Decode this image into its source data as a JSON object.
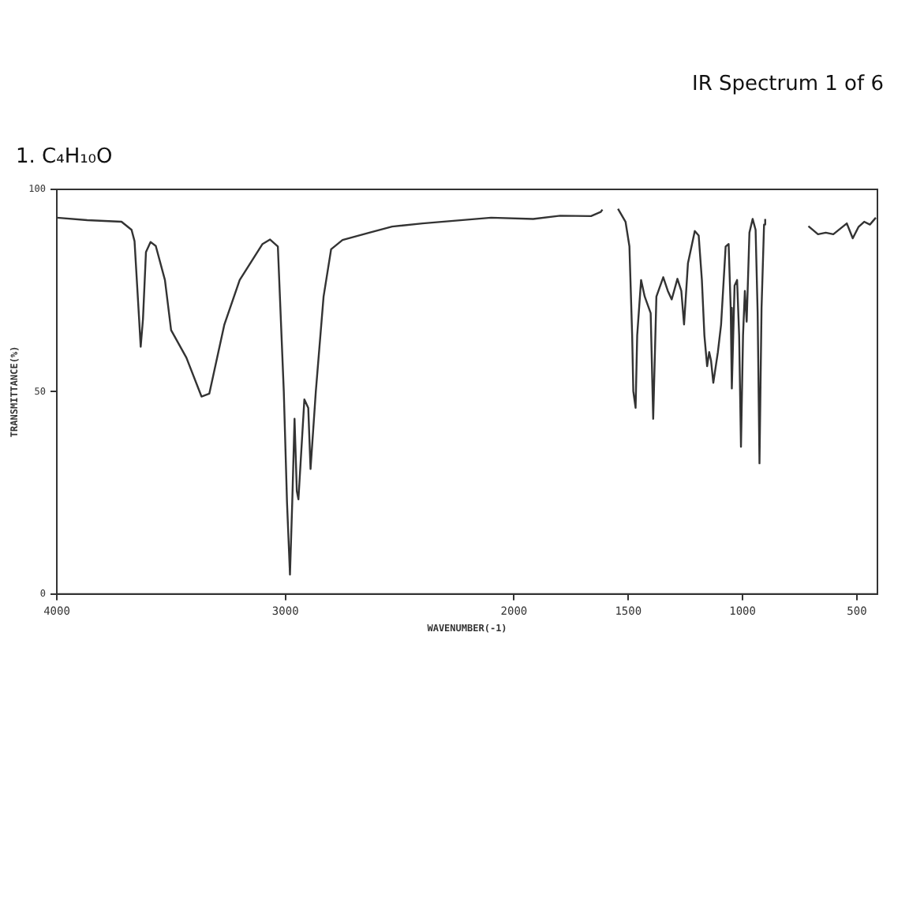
{
  "chart_data": {
    "type": "line",
    "title": "IR Spectrum 1 of 6",
    "subtitle": "1. C₄H₁₀O",
    "xlabel": "WAVENUMBER(-1)",
    "ylabel": "TRANSMITTANCE(%)",
    "x": [
      4000,
      3867,
      3717,
      3673,
      3660,
      3640,
      3633,
      3623,
      3610,
      3590,
      3567,
      3527,
      3500,
      3433,
      3367,
      3333,
      3267,
      3200,
      3100,
      3067,
      3033,
      3007,
      2993,
      2980,
      2970,
      2960,
      2950,
      2943,
      2917,
      2900,
      2890,
      2867,
      2833,
      2800,
      2750,
      2633,
      2533,
      2400,
      2100,
      1916,
      1798,
      1663,
      1621,
      1613,
      1580,
      1545,
      1512,
      1495,
      1483,
      1478,
      1468,
      1461,
      1444,
      1428,
      1402,
      1391,
      1377,
      1347,
      1327,
      1310,
      1285,
      1268,
      1256,
      1239,
      1209,
      1192,
      1178,
      1167,
      1155,
      1146,
      1138,
      1128,
      1108,
      1094,
      1074,
      1061,
      1052,
      1047,
      1035,
      1024,
      1015,
      1007,
      998,
      990,
      982,
      970,
      956,
      943,
      934,
      926,
      917,
      906,
      901,
      800,
      712,
      670,
      636,
      603,
      544,
      518,
      493,
      468,
      443,
      417
    ],
    "series": [
      {
        "color": "#333333",
        "values": [
          93,
          92.4,
          92,
          90,
          87.2,
          68,
          61.1,
          68,
          84.5,
          87,
          86,
          77.6,
          65.2,
          58.4,
          48.8,
          49.5,
          66.6,
          77.6,
          86.5,
          87.6,
          85.9,
          50,
          22.7,
          4.8,
          22.7,
          43.3,
          25.4,
          23.4,
          48.1,
          46,
          30.9,
          50,
          73.5,
          85.2,
          87.5,
          89.3,
          90.8,
          91.6,
          93,
          92.7,
          93.5,
          93.4,
          94.4,
          95,
          null,
          95.2,
          92,
          85.9,
          63.9,
          50.1,
          46,
          63.9,
          77.6,
          73.5,
          69.4,
          43.3,
          73.5,
          78.3,
          74.9,
          72.8,
          77.9,
          74.9,
          66.6,
          81.7,
          89.7,
          88.6,
          77.6,
          63.9,
          56.3,
          59.8,
          57.7,
          52.2,
          59.8,
          66.6,
          85.9,
          86.5,
          70.7,
          50.8,
          76.2,
          77.6,
          63.9,
          36.4,
          63.9,
          74.9,
          67.3,
          89.3,
          92.7,
          90,
          69.4,
          32.3,
          70.7,
          91.3,
          92.7,
          null,
          90.9,
          88.9,
          89.3,
          88.9,
          91.6,
          87.9,
          90.7,
          92,
          91.3,
          93
        ]
      }
    ],
    "xlim": [
      4000,
      410
    ],
    "xticks": [
      4000,
      3000,
      2000,
      1500,
      1000,
      500
    ],
    "ylim": [
      0,
      100
    ],
    "yticks": [
      0,
      50,
      100
    ],
    "grid": false,
    "legend": false,
    "marker": "none",
    "line_style": "solid"
  }
}
